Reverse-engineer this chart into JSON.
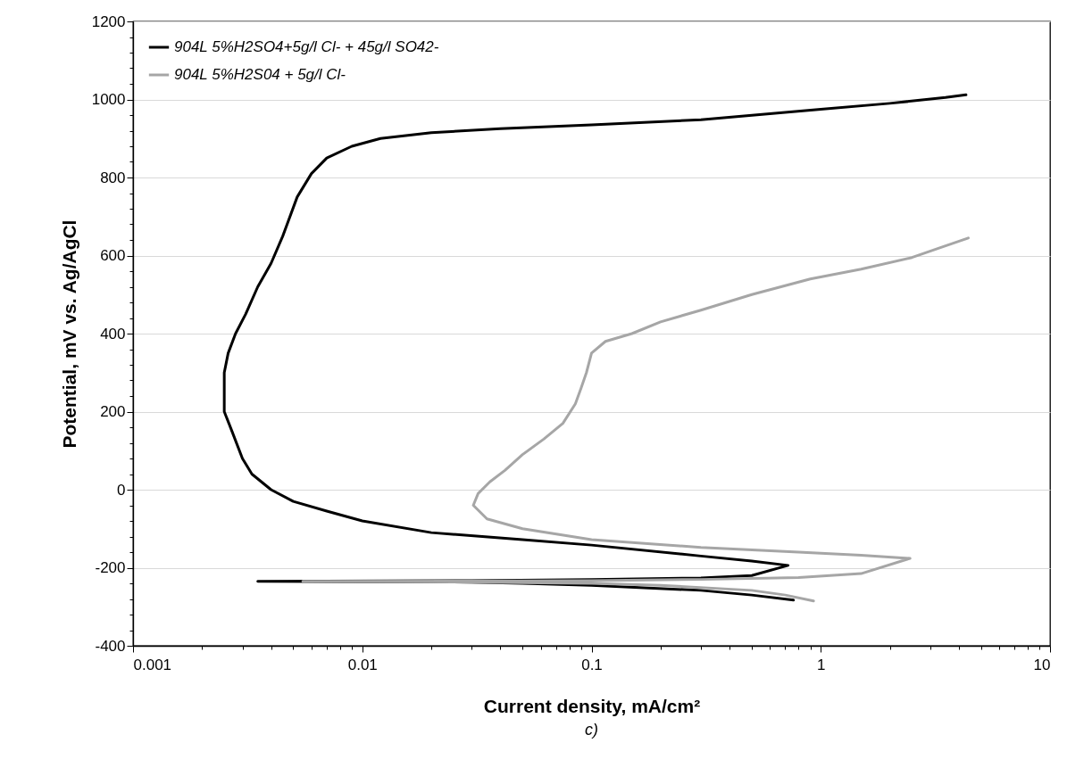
{
  "chart_data": {
    "type": "line",
    "xlabel": "Current density, mA/cm²",
    "ylabel": "Potential, mV vs. Ag/AgCl",
    "annotations": [
      "c)"
    ],
    "log": "x",
    "grid": "y",
    "legend": "top left",
    "marker": "none",
    "line_style": "solid",
    "xlim": [
      0.001,
      10
    ],
    "xticks": [
      0.001,
      {
        "value": 0.002,
        "label": null
      },
      {
        "value": 0.003,
        "label": null
      },
      {
        "value": 0.004,
        "label": null
      },
      {
        "value": 0.005,
        "label": null
      },
      {
        "value": 0.006,
        "label": null
      },
      {
        "value": 0.007,
        "label": null
      },
      {
        "value": 0.008,
        "label": null
      },
      {
        "value": 0.009,
        "label": null
      },
      0.01,
      {
        "value": 0.02,
        "label": null
      },
      {
        "value": 0.03,
        "label": null
      },
      {
        "value": 0.04,
        "label": null
      },
      {
        "value": 0.05,
        "label": null
      },
      {
        "value": 0.06,
        "label": null
      },
      {
        "value": 0.07,
        "label": null
      },
      {
        "value": 0.08,
        "label": null
      },
      {
        "value": 0.09,
        "label": null
      },
      0.1,
      {
        "value": 0.2,
        "label": null
      },
      {
        "value": 0.3,
        "label": null
      },
      {
        "value": 0.4,
        "label": null
      },
      {
        "value": 0.5,
        "label": null
      },
      {
        "value": 0.6,
        "label": null
      },
      {
        "value": 0.7,
        "label": null
      },
      {
        "value": 0.8,
        "label": null
      },
      {
        "value": 0.9,
        "label": null
      },
      1,
      {
        "value": 2,
        "label": null
      },
      {
        "value": 3,
        "label": null
      },
      {
        "value": 4,
        "label": null
      },
      {
        "value": 5,
        "label": null
      },
      {
        "value": 6,
        "label": null
      },
      {
        "value": 7,
        "label": null
      },
      {
        "value": 8,
        "label": null
      },
      {
        "value": 9,
        "label": null
      },
      10
    ],
    "ylim": [
      -400,
      1200
    ],
    "yticks": [
      -400,
      {
        "value": -360,
        "label": null
      },
      {
        "value": -320,
        "label": null
      },
      {
        "value": -280,
        "label": null
      },
      {
        "value": -240,
        "label": null
      },
      -200,
      {
        "value": -160,
        "label": null
      },
      {
        "value": -120,
        "label": null
      },
      {
        "value": -80,
        "label": null
      },
      {
        "value": -40,
        "label": null
      },
      0,
      {
        "value": 40,
        "label": null
      },
      {
        "value": 80,
        "label": null
      },
      {
        "value": 120,
        "label": null
      },
      {
        "value": 160,
        "label": null
      },
      200,
      {
        "value": 240,
        "label": null
      },
      {
        "value": 280,
        "label": null
      },
      {
        "value": 320,
        "label": null
      },
      {
        "value": 360,
        "label": null
      },
      400,
      {
        "value": 440,
        "label": null
      },
      {
        "value": 480,
        "label": null
      },
      {
        "value": 520,
        "label": null
      },
      {
        "value": 560,
        "label": null
      },
      600,
      {
        "value": 640,
        "label": null
      },
      {
        "value": 680,
        "label": null
      },
      {
        "value": 720,
        "label": null
      },
      {
        "value": 760,
        "label": null
      },
      800,
      {
        "value": 840,
        "label": null
      },
      {
        "value": 880,
        "label": null
      },
      {
        "value": 920,
        "label": null
      },
      {
        "value": 960,
        "label": null
      },
      1000,
      {
        "value": 1040,
        "label": null
      },
      {
        "value": 1080,
        "label": null
      },
      {
        "value": 1120,
        "label": null
      },
      {
        "value": 1160,
        "label": null
      },
      1200
    ],
    "series": [
      {
        "name": "904L 5%H2SO4+5g/l Cl- + 45g/l SO42-",
        "color": "#000000",
        "x": [
          0.76,
          0.5,
          0.3,
          0.1,
          0.05,
          0.03,
          0.0035,
          0.03,
          0.1,
          0.3,
          0.5,
          0.72,
          0.5,
          0.3,
          0.1,
          0.05,
          0.02,
          0.01,
          0.007,
          0.005,
          0.004,
          0.0033,
          0.003,
          0.0027,
          0.0025,
          0.0025,
          0.0026,
          0.0028,
          0.0031,
          0.0035,
          0.004,
          0.0045,
          0.0052,
          0.006,
          0.007,
          0.009,
          0.012,
          0.02,
          0.04,
          0.1,
          0.3,
          1,
          2,
          3.5,
          4.3
        ],
        "values": [
          -283,
          -270,
          -258,
          -245,
          -240,
          -237,
          -235,
          -233,
          -230,
          -226,
          -220,
          -194,
          -183,
          -170,
          -142,
          -128,
          -110,
          -80,
          -55,
          -30,
          0,
          40,
          80,
          150,
          200,
          300,
          350,
          400,
          450,
          520,
          580,
          650,
          750,
          810,
          850,
          880,
          900,
          915,
          925,
          935,
          948,
          975,
          990,
          1005,
          1012
        ]
      },
      {
        "name": "904L 5%H2S04 + 5g/l Cl-",
        "color": "#a6a6a6",
        "x": [
          0.93,
          0.7,
          0.5,
          0.2,
          0.1,
          0.03,
          0.0055,
          0.03,
          0.1,
          0.3,
          0.8,
          1.5,
          2.45,
          1.5,
          0.8,
          0.3,
          0.1,
          0.05,
          0.035,
          0.0305,
          0.032,
          0.036,
          0.042,
          0.05,
          0.062,
          0.075,
          0.085,
          0.09,
          0.095,
          0.1,
          0.115,
          0.15,
          0.2,
          0.3,
          0.5,
          0.9,
          1.5,
          2.5,
          3.5,
          4.4
        ],
        "values": [
          -285,
          -270,
          -258,
          -245,
          -240,
          -237,
          -235,
          -234,
          -233,
          -230,
          -225,
          -215,
          -176,
          -168,
          -160,
          -148,
          -128,
          -100,
          -75,
          -40,
          -10,
          20,
          50,
          90,
          130,
          170,
          220,
          260,
          300,
          350,
          380,
          400,
          430,
          460,
          500,
          540,
          565,
          595,
          625,
          645
        ]
      }
    ]
  }
}
